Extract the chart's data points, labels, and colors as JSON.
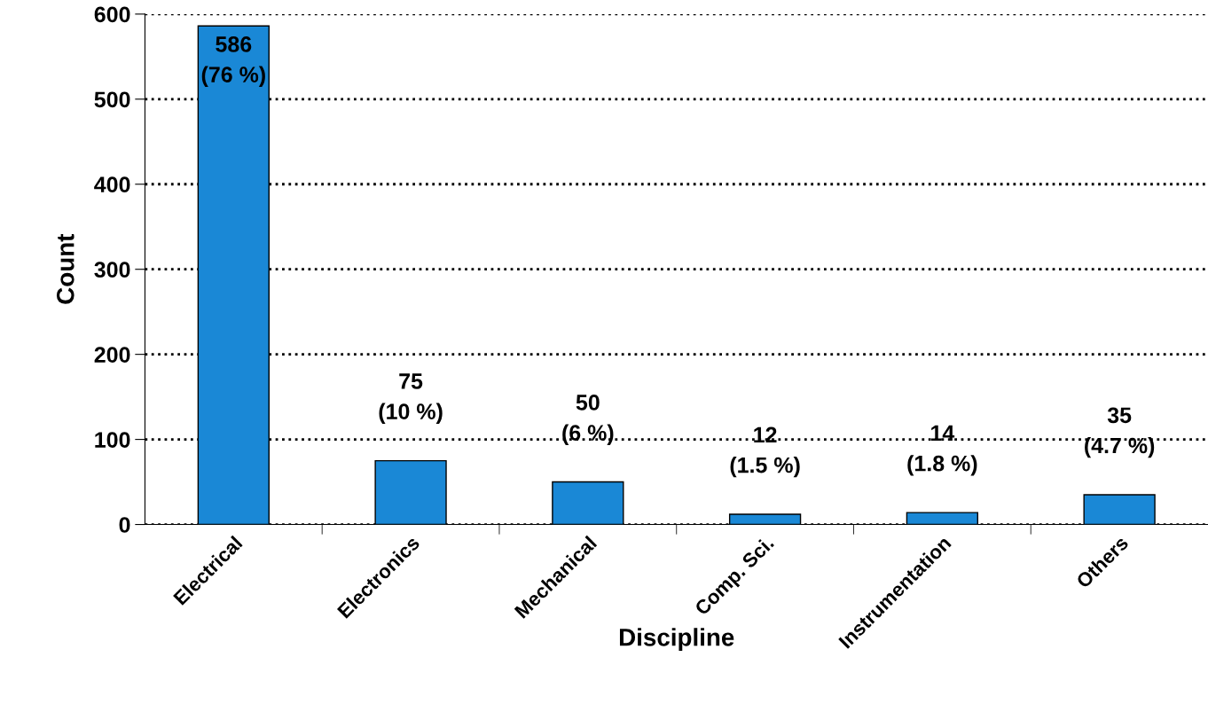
{
  "chart_data": {
    "type": "bar",
    "xlabel": "Discipline",
    "ylabel": "Count",
    "categories": [
      "Electrical",
      "Electronics",
      "Mechanical",
      "Comp. Sci.",
      "Instrumentation",
      "Others"
    ],
    "values": [
      586,
      75,
      50,
      12,
      14,
      35
    ],
    "value_labels": [
      "586\n(76 %)",
      "75\n(10 %)",
      "50\n(6 %)",
      "12\n(1.5 %)",
      "14\n(1.8 %)",
      "35\n(4.7 %)"
    ],
    "color": "#1a88d6",
    "ylim": [
      0,
      600
    ],
    "yticks": [
      0,
      100,
      200,
      300,
      400,
      500,
      600
    ],
    "grid": "y",
    "legend": false
  }
}
